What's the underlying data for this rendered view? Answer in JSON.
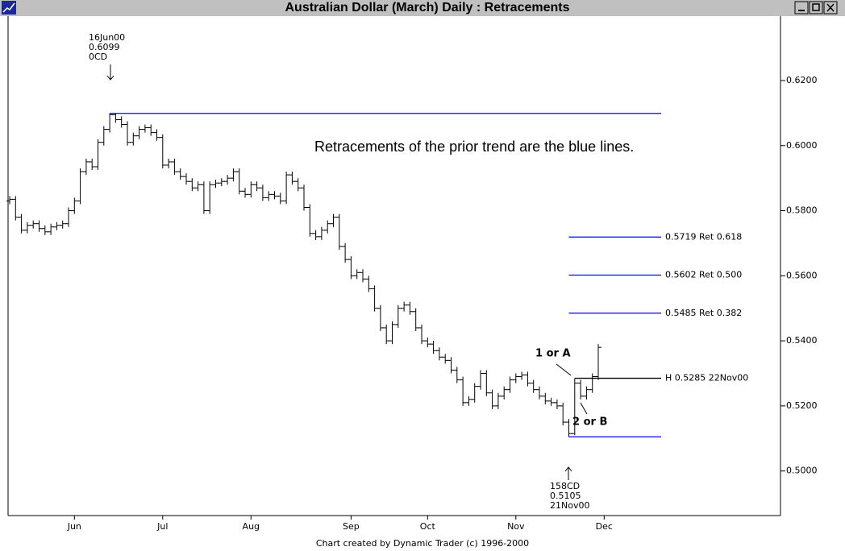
{
  "chart_data": {
    "type": "ohlc",
    "title": "Australian Dollar (March) Daily : Retracements",
    "footer": "Chart created by Dynamic Trader (c) 1996-2000",
    "categories": [
      null,
      null,
      null,
      null,
      null,
      null,
      null,
      null,
      null,
      null,
      null,
      "Jun",
      null,
      null,
      null,
      null,
      null,
      null,
      null,
      null,
      null,
      null,
      null,
      null,
      null,
      null,
      "Jul",
      null,
      null,
      null,
      null,
      null,
      null,
      null,
      null,
      null,
      null,
      null,
      null,
      null,
      null,
      "Aug",
      null,
      null,
      null,
      null,
      null,
      null,
      null,
      null,
      null,
      null,
      null,
      null,
      null,
      null,
      null,
      null,
      "Sep",
      null,
      null,
      null,
      null,
      null,
      null,
      null,
      null,
      null,
      null,
      null,
      null,
      "Oct",
      null,
      null,
      null,
      null,
      null,
      null,
      null,
      null,
      null,
      null,
      null,
      null,
      null,
      null,
      "Nov",
      null,
      null,
      null,
      null,
      null,
      null,
      null,
      null,
      null,
      null,
      null,
      null,
      null,
      null,
      "Dec",
      null,
      null,
      null,
      null,
      null,
      null,
      null,
      null,
      null,
      null
    ],
    "open": [
      0.583,
      0.5835,
      0.578,
      0.574,
      0.5755,
      0.576,
      0.5745,
      0.5735,
      0.575,
      0.5755,
      0.576,
      0.58,
      0.583,
      0.592,
      0.595,
      0.5935,
      0.601,
      0.605,
      0.6095,
      0.608,
      0.6065,
      0.601,
      0.603,
      0.605,
      0.6055,
      0.604,
      0.6025,
      0.594,
      0.595,
      0.592,
      0.5905,
      0.589,
      0.587,
      0.588,
      0.58,
      0.588,
      0.5885,
      0.589,
      0.59,
      0.592,
      0.586,
      0.585,
      0.588,
      0.587,
      0.584,
      0.585,
      0.5845,
      0.583,
      0.591,
      0.589,
      0.587,
      0.581,
      0.573,
      0.572,
      0.574,
      0.576,
      0.578,
      0.569,
      0.565,
      0.56,
      0.561,
      0.559,
      0.556,
      0.55,
      0.544,
      0.54,
      0.545,
      0.55,
      0.551,
      0.549,
      0.544,
      0.54,
      0.539,
      0.537,
      0.535,
      0.534,
      0.531,
      0.528,
      0.521,
      0.522,
      0.526,
      0.53,
      0.524,
      0.52,
      0.523,
      0.525,
      0.528,
      0.529,
      0.5295,
      0.527,
      0.525,
      0.523,
      0.5215,
      0.521,
      0.52,
      0.515,
      0.5115,
      0.527,
      0.523,
      0.525,
      0.529,
      null,
      null,
      null,
      null,
      null,
      null,
      null,
      null,
      null,
      null,
      null
    ],
    "high": [
      0.5845,
      0.5845,
      0.579,
      0.5765,
      0.577,
      0.577,
      0.5755,
      0.576,
      0.5765,
      0.577,
      0.581,
      0.584,
      0.593,
      0.596,
      0.596,
      0.602,
      0.606,
      0.6099,
      0.6098,
      0.609,
      0.6075,
      0.604,
      0.606,
      0.6065,
      0.6065,
      0.605,
      0.6035,
      0.596,
      0.596,
      0.593,
      0.5915,
      0.59,
      0.589,
      0.589,
      0.589,
      0.5895,
      0.59,
      0.591,
      0.593,
      0.593,
      0.587,
      0.589,
      0.589,
      0.588,
      0.586,
      0.586,
      0.5855,
      0.592,
      0.592,
      0.59,
      0.588,
      0.582,
      0.574,
      0.575,
      0.577,
      0.579,
      0.579,
      0.57,
      0.566,
      0.562,
      0.562,
      0.56,
      0.557,
      0.551,
      0.545,
      0.546,
      0.551,
      0.552,
      0.552,
      0.55,
      0.545,
      0.541,
      0.54,
      0.538,
      0.536,
      0.535,
      0.532,
      0.529,
      0.523,
      0.527,
      0.531,
      0.531,
      0.525,
      0.524,
      0.526,
      0.529,
      0.53,
      0.5305,
      0.5305,
      0.528,
      0.526,
      0.524,
      0.5225,
      0.522,
      0.521,
      0.516,
      0.5285,
      0.528,
      0.526,
      0.53,
      0.539,
      null,
      null,
      null,
      null,
      null,
      null,
      null,
      null,
      null,
      null,
      null
    ],
    "low": [
      0.582,
      0.577,
      0.573,
      0.573,
      0.5745,
      0.5735,
      0.5725,
      0.5725,
      0.574,
      0.5745,
      0.575,
      0.579,
      0.582,
      0.591,
      0.5925,
      0.5925,
      0.6,
      0.604,
      0.607,
      0.6055,
      0.6,
      0.6,
      0.602,
      0.604,
      0.603,
      0.6015,
      0.593,
      0.593,
      0.591,
      0.5895,
      0.588,
      0.586,
      0.586,
      0.579,
      0.579,
      0.587,
      0.5875,
      0.588,
      0.589,
      0.585,
      0.584,
      0.584,
      0.586,
      0.583,
      0.583,
      0.5835,
      0.582,
      0.582,
      0.588,
      0.586,
      0.58,
      0.572,
      0.571,
      0.571,
      0.573,
      0.575,
      0.568,
      0.564,
      0.559,
      0.559,
      0.558,
      0.555,
      0.549,
      0.543,
      0.539,
      0.539,
      0.544,
      0.549,
      0.548,
      0.543,
      0.539,
      0.538,
      0.536,
      0.534,
      0.533,
      0.53,
      0.527,
      0.52,
      0.52,
      0.521,
      0.525,
      0.523,
      0.519,
      0.519,
      0.522,
      0.524,
      0.527,
      0.528,
      0.526,
      0.524,
      0.522,
      0.5205,
      0.52,
      0.519,
      0.514,
      0.5105,
      0.511,
      0.522,
      0.522,
      0.524,
      0.528,
      null,
      null,
      null,
      null,
      null,
      null,
      null,
      null,
      null,
      null,
      null
    ],
    "close": [
      0.5835,
      0.578,
      0.574,
      0.5755,
      0.576,
      0.5745,
      0.5735,
      0.575,
      0.5755,
      0.576,
      0.58,
      0.583,
      0.592,
      0.595,
      0.5935,
      0.601,
      0.605,
      0.6095,
      0.608,
      0.6065,
      0.601,
      0.603,
      0.605,
      0.6055,
      0.604,
      0.6025,
      0.594,
      0.595,
      0.592,
      0.5905,
      0.589,
      0.587,
      0.588,
      0.58,
      0.588,
      0.5885,
      0.589,
      0.59,
      0.592,
      0.586,
      0.585,
      0.588,
      0.587,
      0.584,
      0.585,
      0.5845,
      0.583,
      0.591,
      0.589,
      0.587,
      0.581,
      0.573,
      0.572,
      0.574,
      0.576,
      0.578,
      0.569,
      0.565,
      0.56,
      0.561,
      0.559,
      0.556,
      0.55,
      0.544,
      0.54,
      0.545,
      0.55,
      0.551,
      0.549,
      0.544,
      0.54,
      0.539,
      0.537,
      0.535,
      0.534,
      0.531,
      0.528,
      0.521,
      0.522,
      0.526,
      0.53,
      0.524,
      0.52,
      0.523,
      0.525,
      0.528,
      0.529,
      0.5295,
      0.527,
      0.525,
      0.523,
      0.5215,
      0.521,
      0.52,
      0.515,
      0.5115,
      0.527,
      0.523,
      0.525,
      0.529,
      0.538,
      null,
      null,
      null,
      null,
      null,
      null,
      null,
      null,
      null,
      null,
      null
    ],
    "color": "#000000",
    "ylim": [
      0.4863,
      0.6398
    ],
    "yticks": [
      {
        "value": 0.5,
        "label": "0.5000"
      },
      {
        "value": 0.52,
        "label": "0.5200"
      },
      {
        "value": 0.54,
        "label": "0.5400"
      },
      {
        "value": 0.56,
        "label": "0.5600"
      },
      {
        "value": 0.58,
        "label": "0.5800"
      },
      {
        "value": 0.6,
        "label": "0.6000"
      },
      {
        "value": 0.62,
        "label": "0.6200"
      }
    ],
    "levels": [
      {
        "value": 0.6099,
        "color": "#0000ff"
      },
      {
        "value": 0.5719,
        "label": "0.5719 Ret 0.618",
        "color": "#0000ff"
      },
      {
        "value": 0.5602,
        "label": "0.5602 Ret 0.500",
        "color": "#0000ff"
      },
      {
        "value": 0.5485,
        "label": "0.5485 Ret 0.382",
        "color": "#0000ff"
      },
      {
        "value": 0.5105,
        "color": "#0000ff"
      },
      {
        "value": 0.5285,
        "label": "H 0.5285 22Nov00",
        "color": "#000000"
      }
    ],
    "annotations": [
      "16Jun00",
      "0.6099",
      "0CD",
      "158CD",
      "0.5105",
      "21Nov00",
      "1 or A",
      "2 or B",
      "Retracements of the prior trend are the blue lines."
    ]
  }
}
